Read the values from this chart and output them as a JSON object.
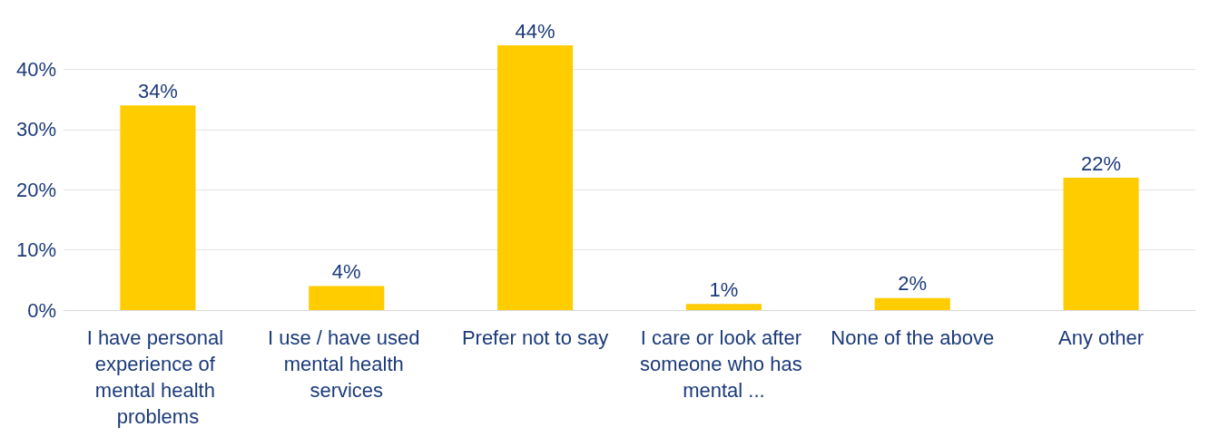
{
  "chart_data": {
    "type": "bar",
    "categories": [
      "I have personal experience of mental health problems",
      "I use / have used mental health services",
      "Prefer not to say",
      "I care or look after someone who has mental ...",
      "None of the above",
      "Any other"
    ],
    "values": [
      34,
      4,
      44,
      1,
      2,
      22
    ],
    "color": "#ffcc00",
    "value_labels": [
      "34%",
      "4%",
      "44%",
      "1%",
      "2%",
      "22%"
    ],
    "ylim": [
      0,
      44
    ],
    "yticks": [
      {
        "value": 0,
        "label": "0%"
      },
      {
        "value": 10,
        "label": "10%"
      },
      {
        "value": 20,
        "label": "20%"
      },
      {
        "value": 30,
        "label": "30%"
      },
      {
        "value": 40,
        "label": "40%"
      }
    ],
    "grid": "y"
  }
}
